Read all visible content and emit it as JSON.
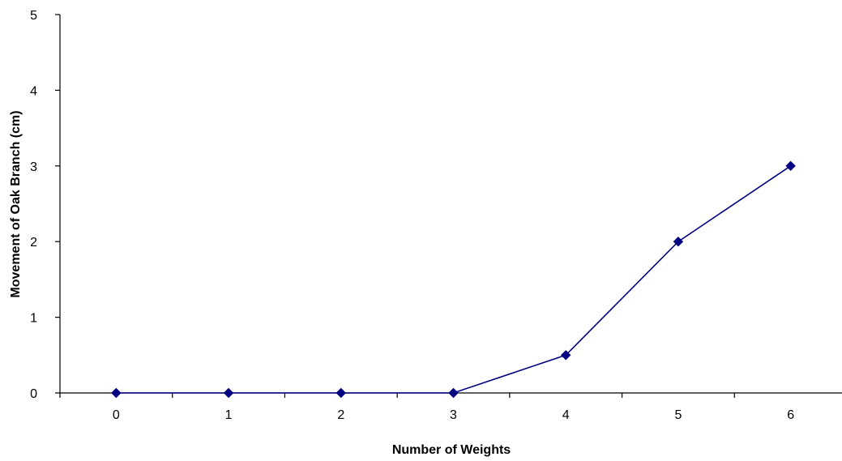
{
  "chart_data": {
    "type": "line",
    "title": "",
    "xlabel": "Number of Weights",
    "ylabel": "Movement of Oak Branch (cm)",
    "x": [
      0,
      1,
      2,
      3,
      4,
      5,
      6
    ],
    "series": [
      {
        "values": [
          0,
          0,
          0,
          0,
          0.5,
          2,
          3
        ]
      }
    ],
    "xlim": [
      -0.5,
      6.5
    ],
    "ylim": [
      0,
      5
    ],
    "x_ticks": [
      "0",
      "1",
      "2",
      "3",
      "4",
      "5",
      "6"
    ],
    "y_ticks": [
      "0",
      "1",
      "2",
      "3",
      "4",
      "5"
    ],
    "grid": false,
    "legend": "none",
    "marker": "diamond",
    "colors": {
      "series": "#000080",
      "axis": "#000000"
    }
  }
}
